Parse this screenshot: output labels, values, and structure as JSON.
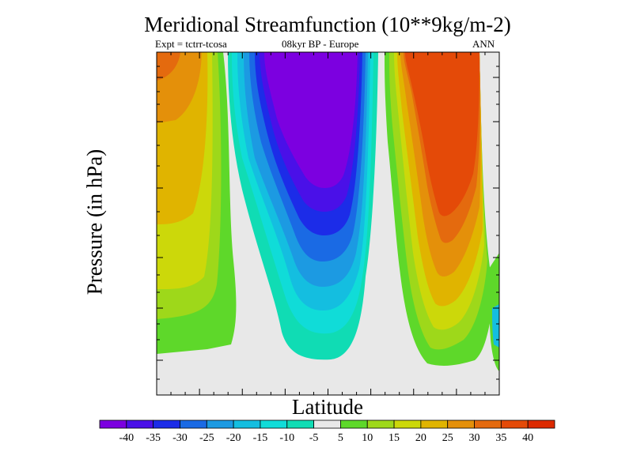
{
  "chart_data": {
    "type": "heatmap",
    "title": "Meridional Streamfunction (10**9kg/m-2)",
    "subtitle_left": "Expt = tctrr-tcosa",
    "subtitle_center": "08kyr BP - Europe",
    "subtitle_right": "ANN",
    "xlabel": "Latitude",
    "ylabel": "Pressure (in hPa)",
    "description": "Filled contour of streamfunction difference by latitude and pressure; strong negative cell (-40) in the centre, strong positive cell (+40) on the right, moderate positive (+25 to +35) on the left.",
    "colorbar": {
      "ticks": [
        "-40",
        "-35",
        "-30",
        "-25",
        "-20",
        "-15",
        "-10",
        "-5",
        "5",
        "10",
        "15",
        "20",
        "25",
        "30",
        "35",
        "40"
      ],
      "colors": [
        "#7c00e0",
        "#4a10e8",
        "#1c2ce8",
        "#1a6ae4",
        "#1c9ae2",
        "#14bee0",
        "#10dcd8",
        "#10dcb4",
        "#e8e8e8",
        "#5ed82a",
        "#9ed81a",
        "#ccd80a",
        "#e0b400",
        "#e4900a",
        "#e46a0e",
        "#e44a08",
        "#dc2a00"
      ]
    }
  }
}
